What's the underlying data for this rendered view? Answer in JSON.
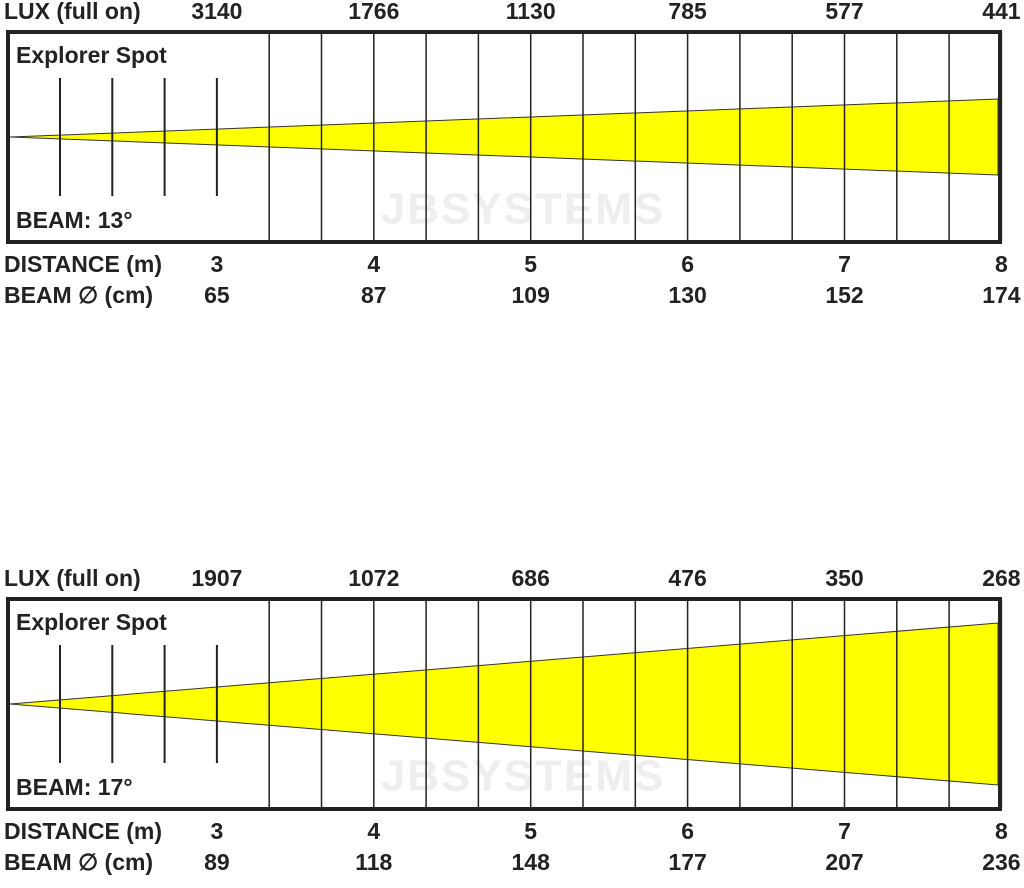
{
  "panels": [
    {
      "lux_label": "LUX (full on)",
      "lux": [
        3140,
        1766,
        1130,
        785,
        577,
        441
      ],
      "title": "Explorer Spot",
      "beam_angle": "BEAM: 13°",
      "watermark": "JBSYSTEMS",
      "distance_label": "DISTANCE (m)",
      "distances": [
        3,
        4,
        5,
        6,
        7,
        8
      ],
      "diameter_label": "BEAM ∅ (cm)",
      "diameters": [
        65,
        87,
        109,
        130,
        152,
        174
      ]
    },
    {
      "lux_label": "LUX (full on)",
      "lux": [
        1907,
        1072,
        686,
        476,
        350,
        268
      ],
      "title": "Explorer Spot",
      "beam_angle": "BEAM: 17°",
      "watermark": "JBSYSTEMS",
      "distance_label": "DISTANCE (m)",
      "distances": [
        3,
        4,
        5,
        6,
        7,
        8
      ],
      "diameter_label": "BEAM ∅ (cm)",
      "diameters": [
        89,
        118,
        148,
        177,
        207,
        236
      ]
    }
  ]
}
